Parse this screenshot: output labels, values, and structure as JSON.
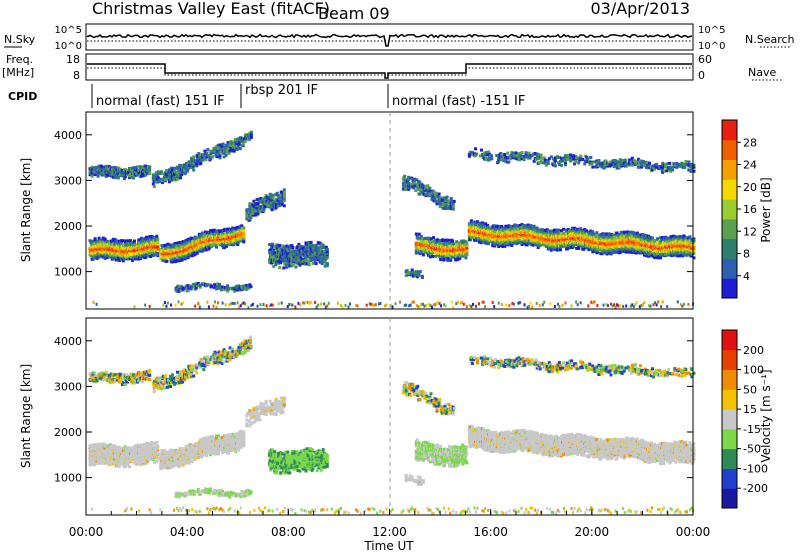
{
  "header": {
    "title": "Christmas Valley East (fitACF)",
    "beam": "Beam 09",
    "date": "03/Apr/2013"
  },
  "top_panels": {
    "nsky_label": "N.Sky",
    "nsearch_label": "N.Search",
    "nsky_ticks": [
      "10^5",
      "10^0"
    ],
    "nsky_right_ticks": [
      "10^5",
      "10^0"
    ],
    "freq_label_1": "Freq.",
    "freq_label_2": "[MHz]",
    "freq_ticks": [
      "18",
      "8"
    ],
    "nave_label": "Nave",
    "nave_ticks": [
      "60",
      "0"
    ],
    "cpid_label": "CPID"
  },
  "cpid_segments": [
    {
      "label": "normal (fast) 151 IF",
      "start_h": 0,
      "end_h": 6
    },
    {
      "label": "rbsp 201 IF",
      "start_h": 6,
      "end_h": 11.85
    },
    {
      "label": "normal (fast) -151 IF",
      "start_h": 11.85,
      "end_h": 24
    }
  ],
  "chart_data": [
    {
      "type": "heatmap",
      "name": "power",
      "ylabel": "Slant Range [km]",
      "xlabel": "",
      "xlim": [
        0,
        24
      ],
      "ylim": [
        180,
        4500
      ],
      "y_ticks": [
        1000,
        2000,
        3000,
        4000
      ],
      "colorbar": {
        "label": "Power [dB]",
        "ticks": [
          "28",
          "24",
          "20",
          "16",
          "12",
          "8",
          "4"
        ],
        "colors": [
          "#1d1dd6",
          "#2e5fb0",
          "#2d7f6e",
          "#5aa050",
          "#9acd32",
          "#f5d800",
          "#f5a000",
          "#f06000",
          "#e52010"
        ]
      }
    },
    {
      "type": "heatmap",
      "name": "velocity",
      "ylabel": "Slant Range [km]",
      "xlabel": "Time UT",
      "xlim": [
        0,
        24
      ],
      "ylim": [
        180,
        4500
      ],
      "y_ticks": [
        1000,
        2000,
        3000,
        4000
      ],
      "x_tick_labels": [
        "00:00",
        "04:00",
        "08:00",
        "12:00",
        "16:00",
        "20:00",
        "00:00"
      ],
      "colorbar": {
        "label": "Velocity [m s⁻¹]",
        "ticks": [
          "200",
          "100",
          "50",
          "15",
          "-15",
          "-50",
          "-100",
          "-200"
        ],
        "colors": [
          "#1a1aa0",
          "#2040d0",
          "#2e8b57",
          "#7cd84a",
          "#c8c8c8",
          "#f2c200",
          "#f08c00",
          "#e84000",
          "#e01010"
        ]
      }
    }
  ]
}
